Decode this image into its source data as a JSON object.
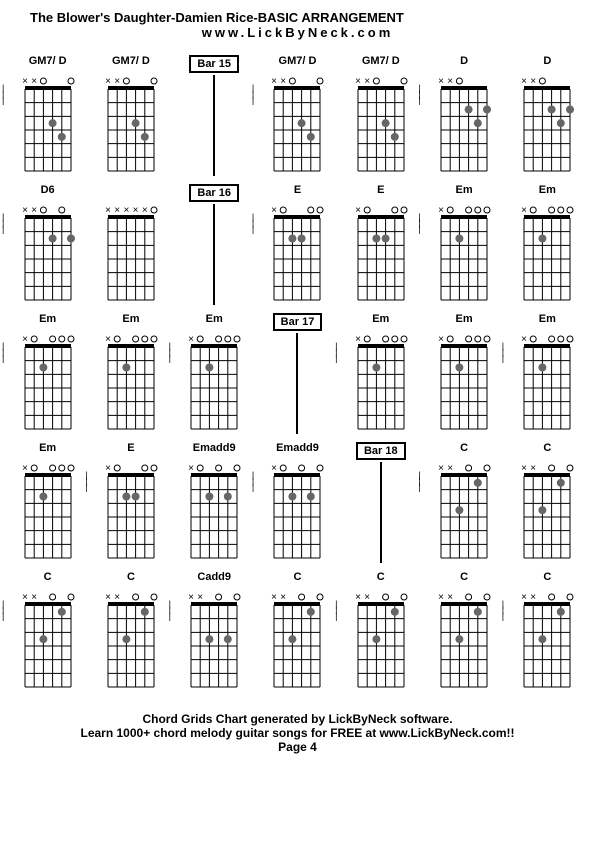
{
  "title": "The Blower's Daughter-Damien Rice-BASIC ARRANGEMENT",
  "url": "www.LickByNeck.com",
  "footer_line1": "Chord Grids Chart generated by LickByNeck software.",
  "footer_line2": "Learn 1000+ chord melody guitar songs for FREE at www.LickByNeck.com!!",
  "footer_line3": "Page 4",
  "chord_visual": {
    "width": 62,
    "height": 105,
    "fret_count": 6,
    "string_count": 6,
    "dot_color": "#666",
    "open_string_gap": 14
  },
  "rows": [
    [
      {
        "type": "chord",
        "label": "GM7/ D",
        "mutes": [
          0,
          1
        ],
        "opens": [
          2,
          5
        ],
        "dots": [
          [
            3,
            2
          ],
          [
            4,
            3
          ]
        ],
        "beat": true
      },
      {
        "type": "chord",
        "label": "GM7/ D",
        "mutes": [
          0,
          1
        ],
        "opens": [
          2,
          5
        ],
        "dots": [
          [
            3,
            2
          ],
          [
            4,
            3
          ]
        ]
      },
      {
        "type": "bar",
        "label": "Bar 15"
      },
      {
        "type": "chord",
        "label": "GM7/ D",
        "mutes": [
          0,
          1
        ],
        "opens": [
          2,
          5
        ],
        "dots": [
          [
            3,
            2
          ],
          [
            4,
            3
          ]
        ],
        "beat": true
      },
      {
        "type": "chord",
        "label": "GM7/ D",
        "mutes": [
          0,
          1
        ],
        "opens": [
          2,
          5
        ],
        "dots": [
          [
            3,
            2
          ],
          [
            4,
            3
          ]
        ]
      },
      {
        "type": "chord",
        "label": "D",
        "mutes": [
          0,
          1
        ],
        "opens": [
          2
        ],
        "dots": [
          [
            3,
            1
          ],
          [
            4,
            2
          ],
          [
            5,
            1
          ]
        ],
        "beat": true
      },
      {
        "type": "chord",
        "label": "D",
        "mutes": [
          0,
          1
        ],
        "opens": [
          2
        ],
        "dots": [
          [
            3,
            1
          ],
          [
            4,
            2
          ],
          [
            5,
            1
          ]
        ]
      }
    ],
    [
      {
        "type": "chord",
        "label": "D6",
        "mutes": [
          0,
          1
        ],
        "opens": [
          2,
          4
        ],
        "dots": [
          [
            3,
            1
          ],
          [
            5,
            1
          ]
        ],
        "beat": true
      },
      {
        "type": "chord",
        "label": "",
        "mutes": [
          0,
          1,
          2,
          3,
          4
        ],
        "opens": [
          5
        ],
        "dots": []
      },
      {
        "type": "bar",
        "label": "Bar 16"
      },
      {
        "type": "chord",
        "label": "E",
        "mutes": [
          0
        ],
        "opens": [
          1,
          4,
          5
        ],
        "dots": [
          [
            2,
            1
          ],
          [
            3,
            1
          ]
        ],
        "beat": true
      },
      {
        "type": "chord",
        "label": "E",
        "mutes": [
          0
        ],
        "opens": [
          1,
          4,
          5
        ],
        "dots": [
          [
            2,
            1
          ],
          [
            3,
            1
          ]
        ]
      },
      {
        "type": "chord",
        "label": "Em",
        "mutes": [
          0
        ],
        "opens": [
          1,
          3,
          4,
          5
        ],
        "dots": [
          [
            2,
            1
          ]
        ],
        "beat": true
      },
      {
        "type": "chord",
        "label": "Em",
        "mutes": [
          0
        ],
        "opens": [
          1,
          3,
          4,
          5
        ],
        "dots": [
          [
            2,
            1
          ]
        ]
      }
    ],
    [
      {
        "type": "chord",
        "label": "Em",
        "mutes": [
          0
        ],
        "opens": [
          1,
          3,
          4,
          5
        ],
        "dots": [
          [
            2,
            1
          ]
        ],
        "beat": true
      },
      {
        "type": "chord",
        "label": "Em",
        "mutes": [
          0
        ],
        "opens": [
          1,
          3,
          4,
          5
        ],
        "dots": [
          [
            2,
            1
          ]
        ]
      },
      {
        "type": "chord",
        "label": "Em",
        "mutes": [
          0
        ],
        "opens": [
          1,
          3,
          4,
          5
        ],
        "dots": [
          [
            2,
            1
          ]
        ],
        "beat": true
      },
      {
        "type": "bar",
        "label": "Bar 17"
      },
      {
        "type": "chord",
        "label": "Em",
        "mutes": [
          0
        ],
        "opens": [
          1,
          3,
          4,
          5
        ],
        "dots": [
          [
            2,
            1
          ]
        ],
        "beat": true
      },
      {
        "type": "chord",
        "label": "Em",
        "mutes": [
          0
        ],
        "opens": [
          1,
          3,
          4,
          5
        ],
        "dots": [
          [
            2,
            1
          ]
        ]
      },
      {
        "type": "chord",
        "label": "Em",
        "mutes": [
          0
        ],
        "opens": [
          1,
          3,
          4,
          5
        ],
        "dots": [
          [
            2,
            1
          ]
        ],
        "beat": true
      }
    ],
    [
      {
        "type": "chord",
        "label": "Em",
        "mutes": [
          0
        ],
        "opens": [
          1,
          3,
          4,
          5
        ],
        "dots": [
          [
            2,
            1
          ]
        ]
      },
      {
        "type": "chord",
        "label": "E",
        "mutes": [
          0
        ],
        "opens": [
          1,
          4,
          5
        ],
        "dots": [
          [
            2,
            1
          ],
          [
            3,
            1
          ]
        ],
        "beat": true
      },
      {
        "type": "chord",
        "label": "Emadd9",
        "mutes": [
          0
        ],
        "opens": [
          1,
          3,
          5
        ],
        "dots": [
          [
            2,
            1
          ],
          [
            4,
            1
          ]
        ]
      },
      {
        "type": "chord",
        "label": "Emadd9",
        "mutes": [
          0
        ],
        "opens": [
          1,
          3,
          5
        ],
        "dots": [
          [
            2,
            1
          ],
          [
            4,
            1
          ]
        ],
        "beat": true
      },
      {
        "type": "bar",
        "label": "Bar 18"
      },
      {
        "type": "chord",
        "label": "C",
        "mutes": [
          0,
          1
        ],
        "opens": [
          3,
          5
        ],
        "dots": [
          [
            2,
            2
          ],
          [
            4,
            0
          ]
        ],
        "beat": true
      },
      {
        "type": "chord",
        "label": "C",
        "mutes": [
          0,
          1
        ],
        "opens": [
          3,
          5
        ],
        "dots": [
          [
            2,
            2
          ],
          [
            4,
            0
          ]
        ]
      }
    ],
    [
      {
        "type": "chord",
        "label": "C",
        "mutes": [
          0,
          1
        ],
        "opens": [
          3,
          5
        ],
        "dots": [
          [
            2,
            2
          ],
          [
            4,
            0
          ]
        ],
        "beat": true
      },
      {
        "type": "chord",
        "label": "C",
        "mutes": [
          0,
          1
        ],
        "opens": [
          3,
          5
        ],
        "dots": [
          [
            2,
            2
          ],
          [
            4,
            0
          ]
        ]
      },
      {
        "type": "chord",
        "label": "Cadd9",
        "mutes": [
          0,
          1
        ],
        "opens": [
          3,
          5
        ],
        "dots": [
          [
            2,
            2
          ],
          [
            4,
            2
          ]
        ],
        "beat": true
      },
      {
        "type": "chord",
        "label": "C",
        "mutes": [
          0,
          1
        ],
        "opens": [
          3,
          5
        ],
        "dots": [
          [
            2,
            2
          ],
          [
            4,
            0
          ]
        ]
      },
      {
        "type": "chord",
        "label": "C",
        "mutes": [
          0,
          1
        ],
        "opens": [
          3,
          5
        ],
        "dots": [
          [
            2,
            2
          ],
          [
            4,
            0
          ]
        ],
        "beat": true
      },
      {
        "type": "chord",
        "label": "C",
        "mutes": [
          0,
          1
        ],
        "opens": [
          3,
          5
        ],
        "dots": [
          [
            2,
            2
          ],
          [
            4,
            0
          ]
        ]
      },
      {
        "type": "chord",
        "label": "C",
        "mutes": [
          0,
          1
        ],
        "opens": [
          3,
          5
        ],
        "dots": [
          [
            2,
            2
          ],
          [
            4,
            0
          ]
        ],
        "beat": true
      }
    ]
  ]
}
